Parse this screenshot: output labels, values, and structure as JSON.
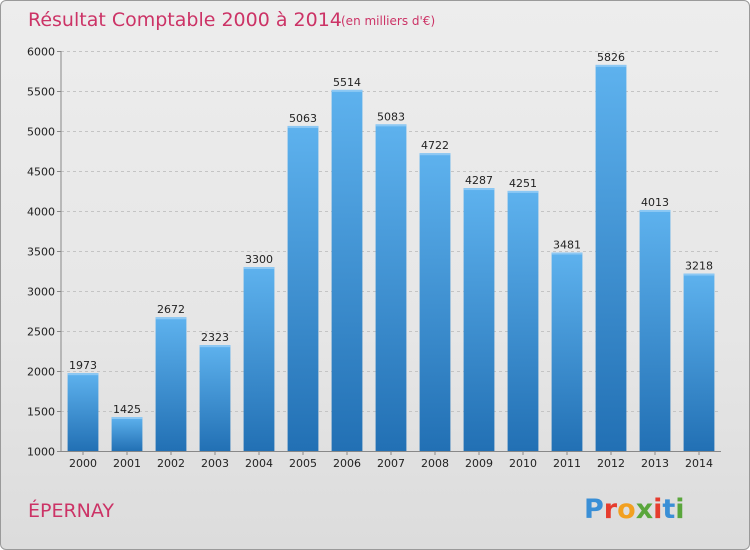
{
  "chart_data": {
    "type": "bar",
    "title": "Résultat Comptable 2000 à 2014",
    "subtitle": "(en milliers d'€)",
    "categories": [
      "2000",
      "2001",
      "2002",
      "2003",
      "2004",
      "2005",
      "2006",
      "2007",
      "2008",
      "2009",
      "2010",
      "2011",
      "2012",
      "2013",
      "2014"
    ],
    "values": [
      1973,
      1425,
      2672,
      2323,
      3300,
      5063,
      5514,
      5083,
      4722,
      4287,
      4251,
      3481,
      5826,
      4013,
      3218
    ],
    "ylim": [
      1000,
      6000
    ],
    "yticks": [
      1000,
      1500,
      2000,
      2500,
      3000,
      3500,
      4000,
      4500,
      5000,
      5500,
      6000
    ],
    "xlabel": "",
    "ylabel": "",
    "grid": true,
    "bar_color": "#3a8fd6"
  },
  "location": "ÉPERNAY",
  "logo": {
    "letters": [
      "P",
      "r",
      "o",
      "x",
      "i",
      "t",
      "i"
    ],
    "colors": [
      "#3a8fd6",
      "#e63c2e",
      "#f2a020",
      "#5aa63c",
      "#e63c2e",
      "#3a8fd6",
      "#5aa63c"
    ]
  }
}
